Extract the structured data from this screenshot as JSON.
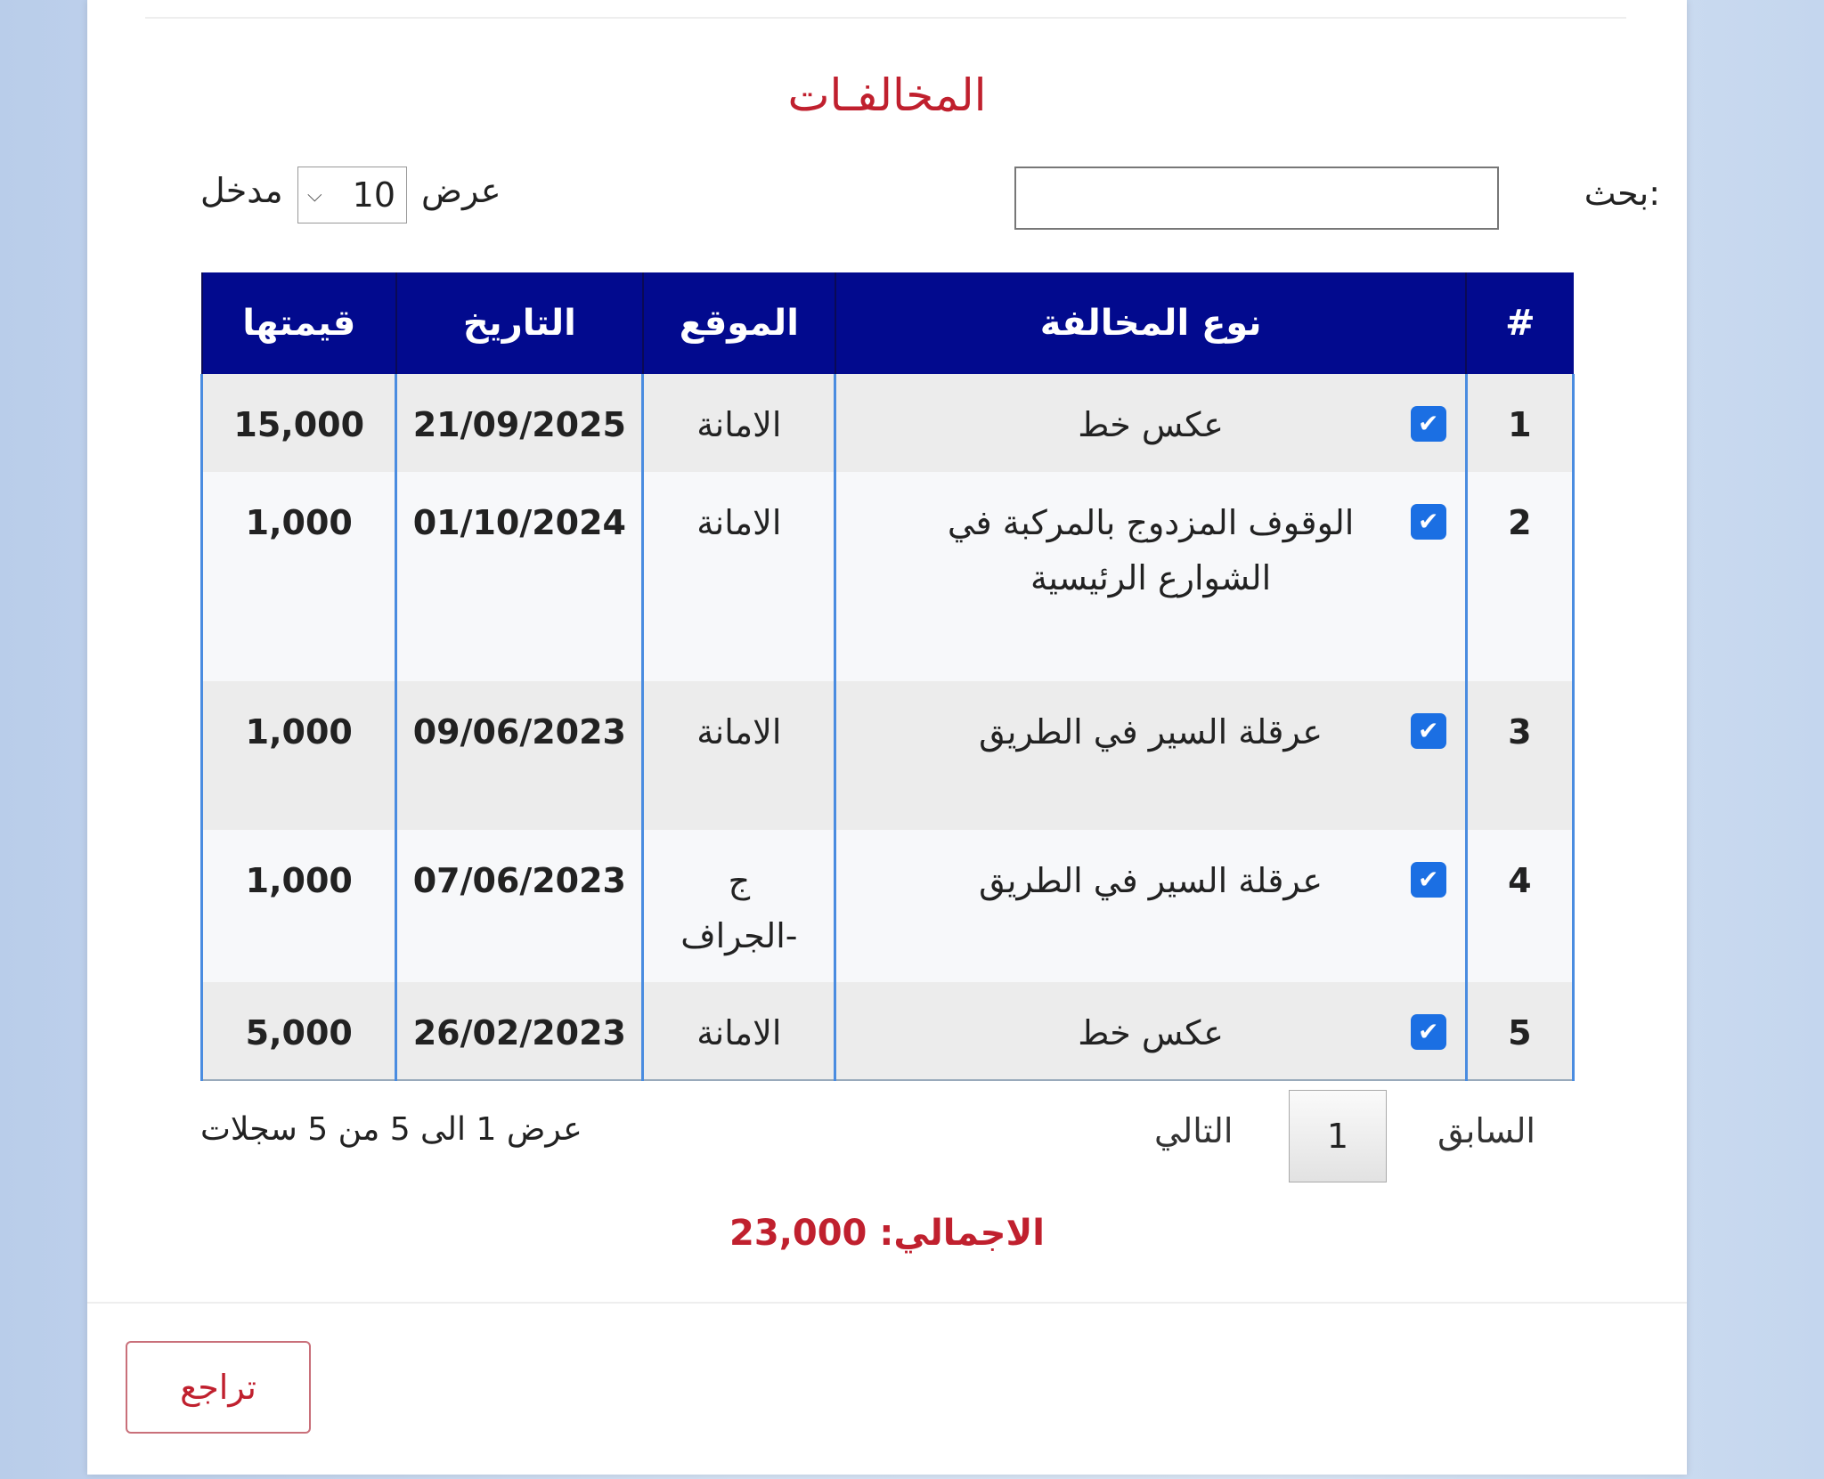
{
  "title": "المخالفـات",
  "search": {
    "label": "بحث:",
    "value": "",
    "placeholder": ""
  },
  "length": {
    "prefix": "عرض",
    "value": "10",
    "suffix": "مدخل"
  },
  "table": {
    "headers": [
      "#",
      "نوع المخالفة",
      "الموقع",
      "التاريخ",
      "قيمتها"
    ],
    "rows": [
      {
        "n": "1",
        "type": "عكس خط",
        "checked": true,
        "location": "الامانة",
        "date": "21/09/2025",
        "value": "15,000"
      },
      {
        "n": "2",
        "type": "الوقوف المزدوج بالمركبة في الشوارع الرئيسية",
        "checked": true,
        "location": "الامانة",
        "date": "01/10/2024",
        "value": "1,000"
      },
      {
        "n": "3",
        "type": "عرقلة السير في الطريق",
        "checked": true,
        "location": "الامانة",
        "date": "09/06/2023",
        "value": "1,000"
      },
      {
        "n": "4",
        "type": "عرقلة السير في الطريق",
        "checked": true,
        "location": "ج -الجراف",
        "date": "07/06/2023",
        "value": "1,000"
      },
      {
        "n": "5",
        "type": "عكس خط",
        "checked": true,
        "location": "الامانة",
        "date": "26/02/2023",
        "value": "5,000"
      }
    ]
  },
  "info": "عرض 1 الى 5 من 5 سجلات",
  "pagination": {
    "previous": "السابق",
    "current": "1",
    "next": "التالي"
  },
  "total": "الاجمالي: 23,000",
  "back_button": "تراجع",
  "colors": {
    "header_bg": "#020a8e",
    "accent_red": "#c0202e",
    "checkbox": "#1b6fe3",
    "column_border": "#4a8ce0"
  }
}
